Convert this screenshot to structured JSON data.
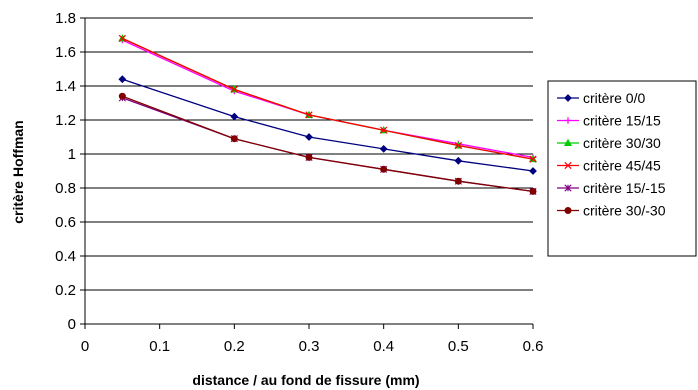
{
  "chart_data": {
    "type": "line",
    "xlabel": "distance / au fond de fissure (mm)",
    "ylabel": "critère Hoffman",
    "xlim": [
      0,
      0.6
    ],
    "ylim": [
      0,
      1.8
    ],
    "x_ticks": [
      0,
      0.1,
      0.2,
      0.3,
      0.4,
      0.5,
      0.6
    ],
    "y_ticks": [
      0,
      0.2,
      0.4,
      0.6,
      0.8,
      1,
      1.2,
      1.4,
      1.6,
      1.8
    ],
    "x_tick_labels": [
      "0",
      "0.1",
      "0.2",
      "0.3",
      "0.4",
      "0.5",
      "0.6"
    ],
    "y_tick_labels": [
      "0",
      "0.2",
      "0.4",
      "0.6",
      "0.8",
      "1",
      "1.2",
      "1.4",
      "1.6",
      "1.8"
    ],
    "grid": "horizontal",
    "legend_position": "right",
    "x": [
      0.05,
      0.2,
      0.3,
      0.4,
      0.5,
      0.6
    ],
    "series": [
      {
        "name": "critère 0/0",
        "color": "#000080",
        "marker": "diamond",
        "values": [
          1.44,
          1.22,
          1.1,
          1.03,
          0.96,
          0.9
        ]
      },
      {
        "name": "critère 15/15",
        "color": "#ff00ff",
        "marker": "plus",
        "values": [
          1.67,
          1.37,
          1.23,
          1.14,
          1.06,
          0.98
        ]
      },
      {
        "name": "critère 30/30",
        "color": "#00cc00",
        "marker": "triangle",
        "values": [
          1.68,
          1.38,
          1.23,
          1.14,
          1.05,
          0.97
        ]
      },
      {
        "name": "critère 45/45",
        "color": "#ff0000",
        "marker": "x",
        "values": [
          1.68,
          1.38,
          1.23,
          1.14,
          1.05,
          0.97
        ]
      },
      {
        "name": "critère 15/-15",
        "color": "#800080",
        "marker": "star",
        "values": [
          1.33,
          1.09,
          0.98,
          0.91,
          0.84,
          0.78
        ]
      },
      {
        "name": "critère 30/-30",
        "color": "#800000",
        "marker": "circle",
        "values": [
          1.34,
          1.09,
          0.98,
          0.91,
          0.84,
          0.78
        ]
      }
    ]
  }
}
